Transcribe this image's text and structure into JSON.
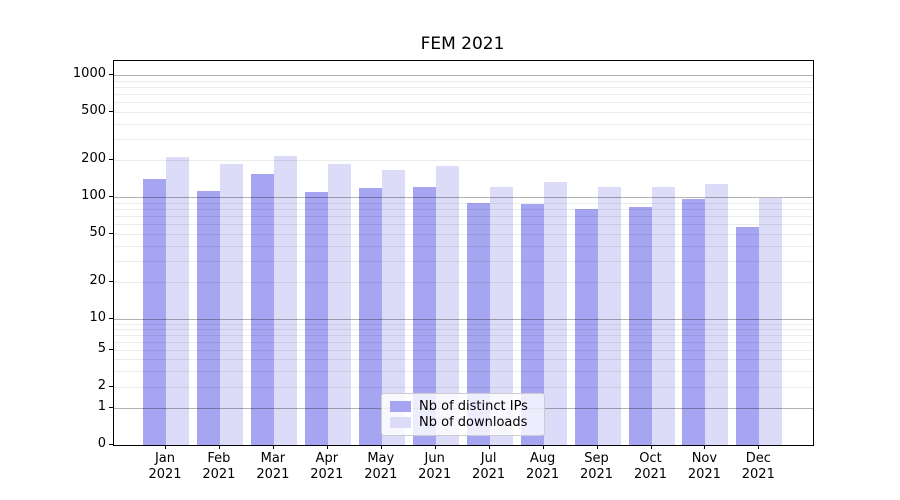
{
  "title": "FEM 2021",
  "chart_data": {
    "type": "bar",
    "title": "FEM 2021",
    "categories": [
      "Jan 2021",
      "Feb 2021",
      "Mar 2021",
      "Apr 2021",
      "May 2021",
      "Jun 2021",
      "Jul 2021",
      "Aug 2021",
      "Sep 2021",
      "Oct 2021",
      "Nov 2021",
      "Dec 2021"
    ],
    "series": [
      {
        "name": "Nb of distinct IPs",
        "color": "#a5a5f2",
        "values": [
          140,
          113,
          155,
          110,
          118,
          121,
          89,
          87,
          80,
          83,
          97,
          57
        ]
      },
      {
        "name": "Nb of downloads",
        "color": "#dcdcf8",
        "values": [
          212,
          187,
          218,
          186,
          167,
          180,
          120,
          133,
          122,
          122,
          129,
          99
        ]
      }
    ],
    "xlabel": "",
    "ylabel": "",
    "y_scale": "symlog (logarithmic above 10, compressed toward 0 below)",
    "y_ticks": [
      0,
      1,
      2,
      5,
      10,
      20,
      50,
      100,
      200,
      500,
      1000
    ],
    "ylim": [
      0,
      1300
    ],
    "grid": "horizontal major and minor gridlines, drawn over bars",
    "legend_position": "lower center inside plot",
    "colors": {
      "bar_dark": "#a5a5f2",
      "bar_light": "#dcdcf8",
      "grid_major": "rgba(0,0,0,0.30)",
      "grid_minor": "rgba(0,0,0,0.08)",
      "spine": "#000000",
      "background": "#ffffff"
    }
  }
}
